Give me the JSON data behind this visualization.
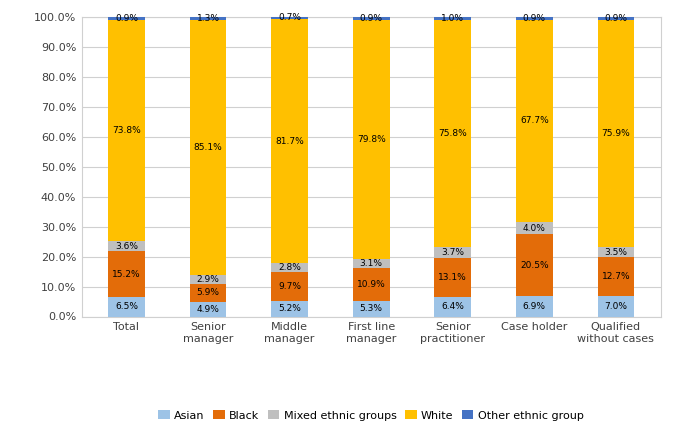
{
  "categories": [
    "Total",
    "Senior\nmanager",
    "Middle\nmanager",
    "First line\nmanager",
    "Senior\npractitioner",
    "Case holder",
    "Qualified\nwithout cases"
  ],
  "series": {
    "Asian": [
      6.5,
      4.9,
      5.2,
      5.3,
      6.4,
      6.9,
      7.0
    ],
    "Black": [
      15.2,
      5.9,
      9.7,
      10.9,
      13.1,
      20.5,
      12.7
    ],
    "Mixed ethnic groups": [
      3.6,
      2.9,
      2.8,
      3.1,
      3.7,
      4.0,
      3.5
    ],
    "White": [
      73.8,
      85.1,
      81.7,
      79.8,
      75.8,
      67.7,
      75.9
    ],
    "Other ethnic group": [
      0.9,
      1.3,
      0.7,
      0.9,
      1.0,
      0.9,
      0.9
    ]
  },
  "colors": {
    "Asian": "#9dc3e6",
    "Black": "#e36c09",
    "Mixed ethnic groups": "#bfbfbf",
    "White": "#ffc000",
    "Other ethnic group": "#4472c4"
  },
  "series_order": [
    "Asian",
    "Black",
    "Mixed ethnic groups",
    "White",
    "Other ethnic group"
  ],
  "ylim": [
    0,
    100
  ],
  "background_color": "#ffffff",
  "plot_bg_color": "#ffffff",
  "bar_width": 0.45,
  "figsize": [
    6.81,
    4.22
  ],
  "dpi": 100,
  "label_fontsize": 6.5,
  "tick_fontsize": 8.0,
  "legend_fontsize": 8.0,
  "border_color": "#d0d0d0"
}
